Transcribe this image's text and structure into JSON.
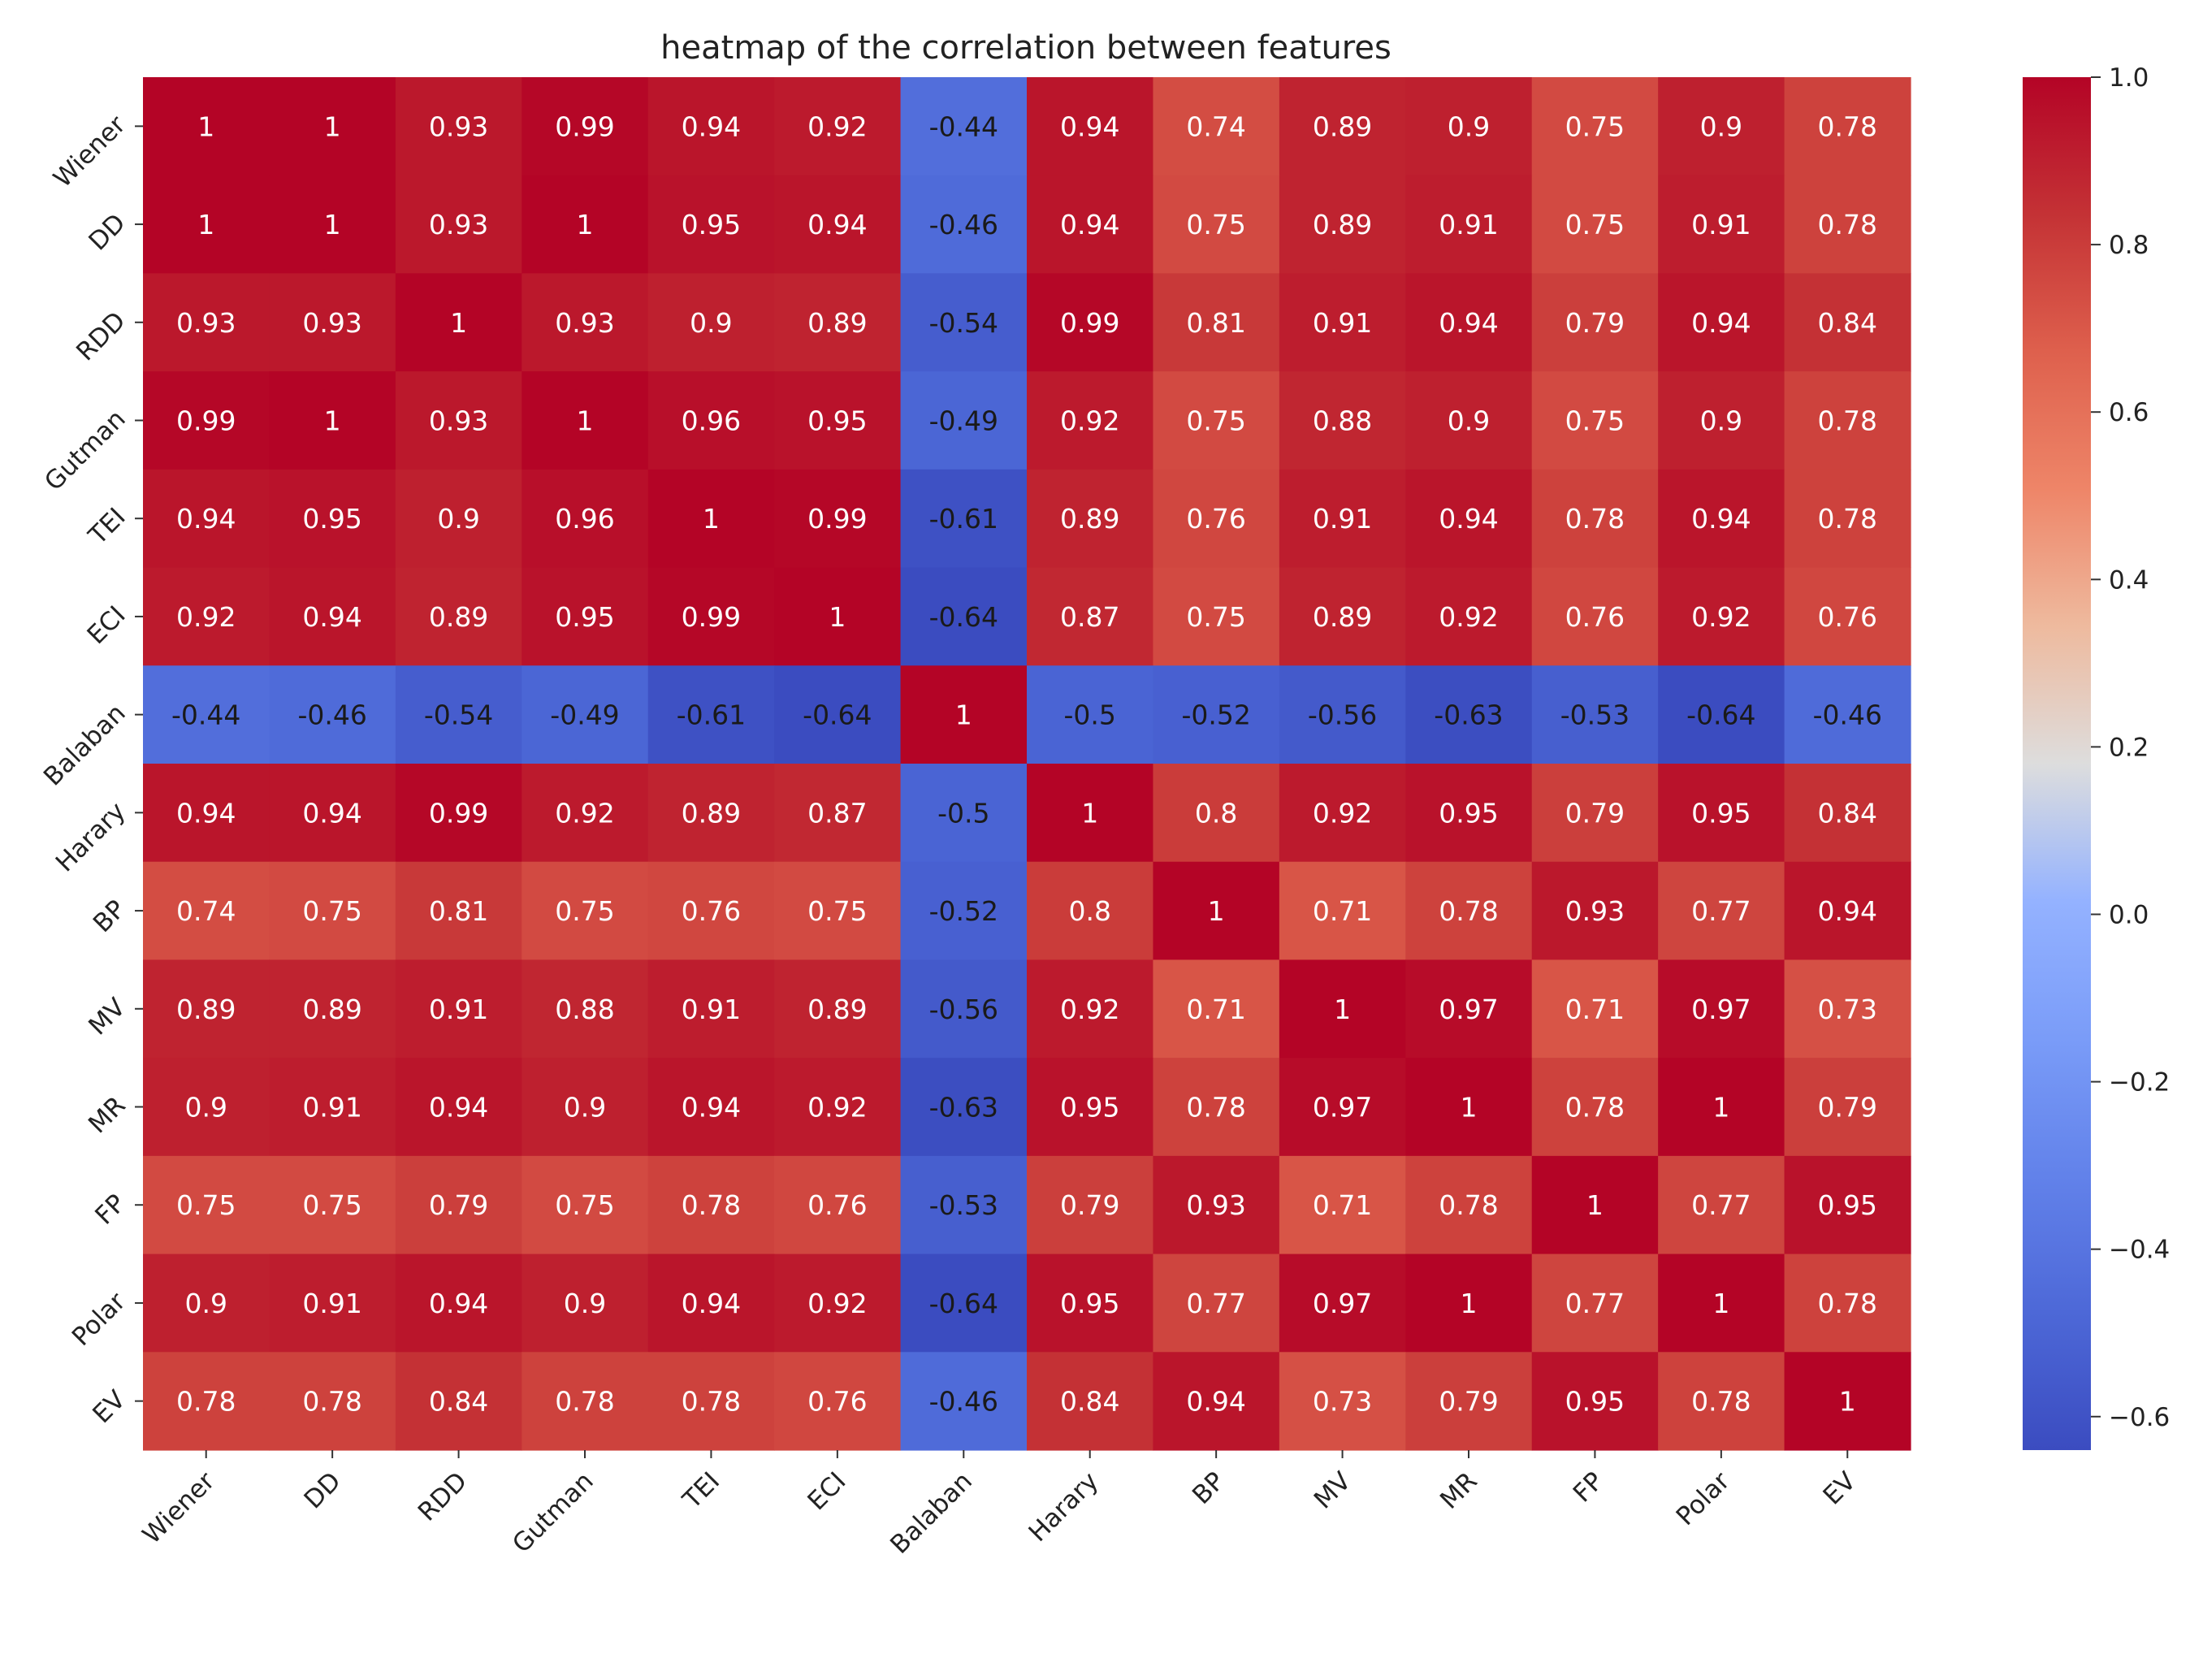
{
  "chart_data": {
    "type": "heatmap",
    "title": "heatmap of the correlation between features",
    "xlabel": "",
    "ylabel": "",
    "rows": [
      "Wiener",
      "DD",
      "RDD",
      "Gutman",
      "TEI",
      "ECI",
      "Balaban",
      "Harary",
      "BP",
      "MV",
      "MR",
      "FP",
      "Polar",
      "EV"
    ],
    "columns": [
      "Wiener",
      "DD",
      "RDD",
      "Gutman",
      "TEI",
      "ECI",
      "Balaban",
      "Harary",
      "BP",
      "MV",
      "MR",
      "FP",
      "Polar",
      "EV"
    ],
    "values": [
      [
        1,
        1,
        0.93,
        0.99,
        0.94,
        0.92,
        -0.44,
        0.94,
        0.74,
        0.89,
        0.9,
        0.75,
        0.9,
        0.78
      ],
      [
        1,
        1,
        0.93,
        1,
        0.95,
        0.94,
        -0.46,
        0.94,
        0.75,
        0.89,
        0.91,
        0.75,
        0.91,
        0.78
      ],
      [
        0.93,
        0.93,
        1,
        0.93,
        0.9,
        0.89,
        -0.54,
        0.99,
        0.81,
        0.91,
        0.94,
        0.79,
        0.94,
        0.84
      ],
      [
        0.99,
        1,
        0.93,
        1,
        0.96,
        0.95,
        -0.49,
        0.92,
        0.75,
        0.88,
        0.9,
        0.75,
        0.9,
        0.78
      ],
      [
        0.94,
        0.95,
        0.9,
        0.96,
        1,
        0.99,
        -0.61,
        0.89,
        0.76,
        0.91,
        0.94,
        0.78,
        0.94,
        0.78
      ],
      [
        0.92,
        0.94,
        0.89,
        0.95,
        0.99,
        1,
        -0.64,
        0.87,
        0.75,
        0.89,
        0.92,
        0.76,
        0.92,
        0.76
      ],
      [
        -0.44,
        -0.46,
        -0.54,
        -0.49,
        -0.61,
        -0.64,
        1,
        -0.5,
        -0.52,
        -0.56,
        -0.63,
        -0.53,
        -0.64,
        -0.46
      ],
      [
        0.94,
        0.94,
        0.99,
        0.92,
        0.89,
        0.87,
        -0.5,
        1,
        0.8,
        0.92,
        0.95,
        0.79,
        0.95,
        0.84
      ],
      [
        0.74,
        0.75,
        0.81,
        0.75,
        0.76,
        0.75,
        -0.52,
        0.8,
        1,
        0.71,
        0.78,
        0.93,
        0.77,
        0.94
      ],
      [
        0.89,
        0.89,
        0.91,
        0.88,
        0.91,
        0.89,
        -0.56,
        0.92,
        0.71,
        1,
        0.97,
        0.71,
        0.97,
        0.73
      ],
      [
        0.9,
        0.91,
        0.94,
        0.9,
        0.94,
        0.92,
        -0.63,
        0.95,
        0.78,
        0.97,
        1,
        0.78,
        1,
        0.79
      ],
      [
        0.75,
        0.75,
        0.79,
        0.75,
        0.78,
        0.76,
        -0.53,
        0.79,
        0.93,
        0.71,
        0.78,
        1,
        0.77,
        0.95
      ],
      [
        0.9,
        0.91,
        0.94,
        0.9,
        0.94,
        0.92,
        -0.64,
        0.95,
        0.77,
        0.97,
        1,
        0.77,
        1,
        0.78
      ],
      [
        0.78,
        0.78,
        0.84,
        0.78,
        0.78,
        0.76,
        -0.46,
        0.84,
        0.94,
        0.73,
        0.79,
        0.95,
        0.78,
        1
      ]
    ],
    "colormap": "coolwarm",
    "colorbar": {
      "vmin": -0.64,
      "vmax": 1.0,
      "ticks": [
        1.0,
        0.8,
        0.6,
        0.4,
        0.2,
        0.0,
        -0.2,
        -0.4,
        -0.6
      ],
      "tick_labels": [
        "1.0",
        "0.8",
        "0.6",
        "0.4",
        "0.2",
        "0.0",
        "−0.2",
        "−0.4",
        "−0.6"
      ]
    },
    "annotations": true,
    "grid": false
  }
}
